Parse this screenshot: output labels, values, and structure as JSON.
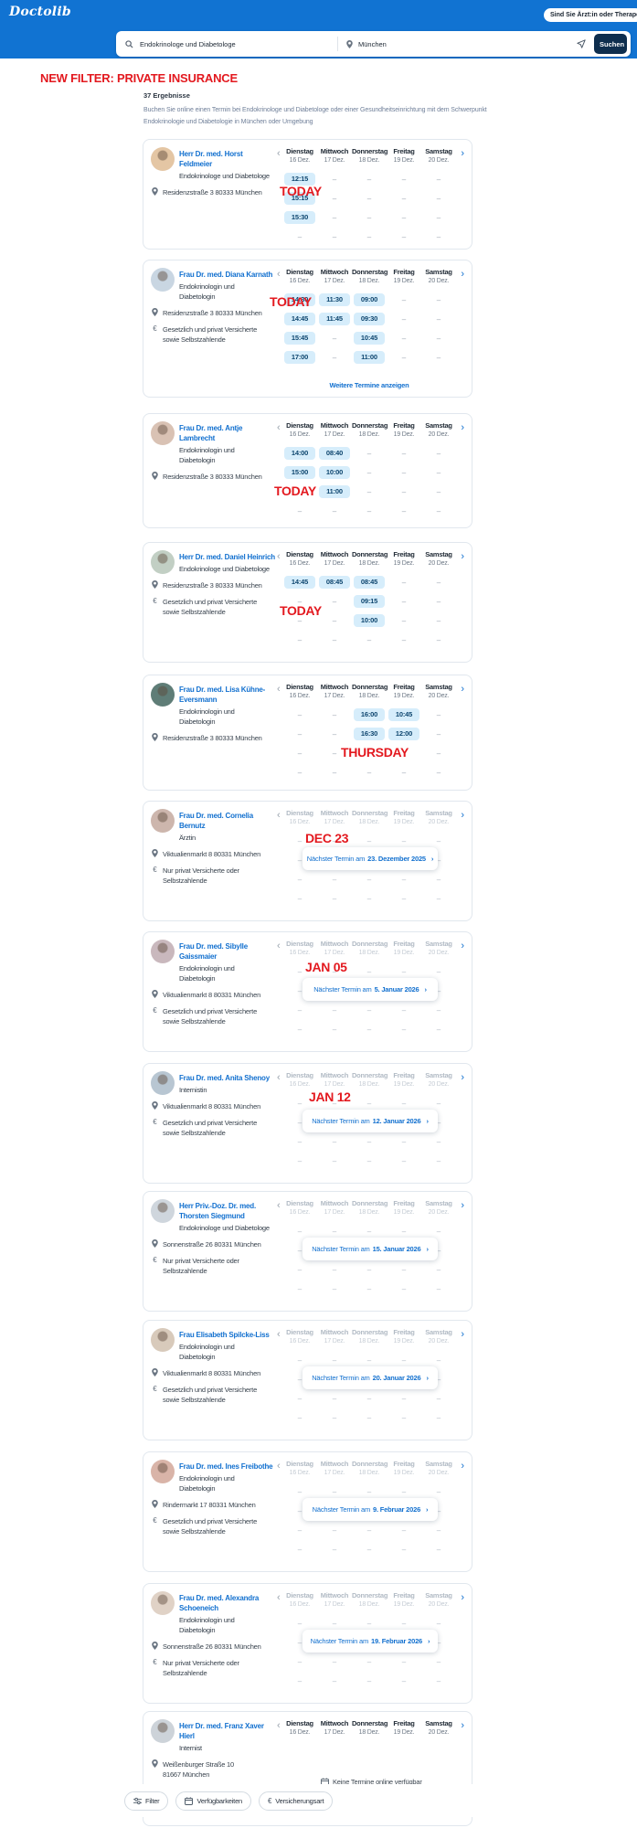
{
  "header": {
    "logo": "Doctolib",
    "pro_button_label": "Sind Sie Ärzt:in oder Therapeut:in",
    "search": {
      "query": "Endokrinologe und Diabetologe",
      "location": "München",
      "submit_label": "Suchen"
    }
  },
  "annotations": {
    "filter_banner": "NEW FILTER: PRIVATE INSURANCE"
  },
  "results": {
    "count_label": "37 Ergebnisse",
    "description": "Buchen Sie online einen Termin bei Endokrinologe und Diabetologe oder einer Gesundheitseinrichtung mit dem Schwerpunkt\nEndokrinologie und Diabetologie in München oder Umgebung"
  },
  "calendar": {
    "days": [
      {
        "label": "Dienstag",
        "date": "16 Dez."
      },
      {
        "label": "Mittwoch",
        "date": "17 Dez."
      },
      {
        "label": "Donnerstag",
        "date": "18 Dez."
      },
      {
        "label": "Freitag",
        "date": "19 Dez."
      },
      {
        "label": "Samstag",
        "date": "20 Dez."
      }
    ],
    "more_link_label": "Weitere Termine anzeigen",
    "next_prefix": "Nächster Termin am",
    "no_online_label": "Keine Termine online verfügbar"
  },
  "doctors": [
    {
      "name": "Herr Dr. med. Horst Feldmeier",
      "specialty": "Endokrinologe und Diabetologe",
      "address": "Residenzstraße 3 80333 München",
      "insurance": null,
      "annotation": "TODAY",
      "mode": "slots",
      "slots": [
        [
          "12:15",
          "–",
          "–",
          "–",
          "–"
        ],
        [
          "15:15",
          "–",
          "–",
          "–",
          "–"
        ],
        [
          "15:30",
          "–",
          "–",
          "–",
          "–"
        ],
        [
          "–",
          "–",
          "–",
          "–",
          "–"
        ]
      ]
    },
    {
      "name": "Frau Dr. med. Diana Karnath",
      "specialty": "Endokrinologin und\nDiabetologin",
      "address": "Residenzstraße 3 80333 München",
      "insurance": "Gesetzlich und privat Versicherte\nsowie Selbstzahlende",
      "annotation": "TODAY",
      "mode": "slots",
      "more_link": true,
      "slots": [
        [
          "14:30",
          "11:30",
          "09:00",
          "–",
          "–"
        ],
        [
          "14:45",
          "11:45",
          "09:30",
          "–",
          "–"
        ],
        [
          "15:45",
          "–",
          "10:45",
          "–",
          "–"
        ],
        [
          "17:00",
          "–",
          "11:00",
          "–",
          "–"
        ]
      ]
    },
    {
      "name": "Frau Dr. med. Antje Lambrecht",
      "specialty": "Endokrinologin und\nDiabetologin",
      "address": "Residenzstraße 3 80333 München",
      "insurance": null,
      "annotation": "TODAY",
      "mode": "slots",
      "slots": [
        [
          "14:00",
          "08:40",
          "–",
          "–",
          "–"
        ],
        [
          "15:00",
          "10:00",
          "–",
          "–",
          "–"
        ],
        [
          "",
          "11:00",
          "–",
          "–",
          "–"
        ],
        [
          "–",
          "–",
          "–",
          "–",
          "–"
        ]
      ]
    },
    {
      "name": "Herr Dr. med. Daniel Heinrich",
      "specialty": "Endokrinologe und Diabetologe",
      "address": "Residenzstraße 3 80333 München",
      "insurance": "Gesetzlich und privat Versicherte\nsowie Selbstzahlende",
      "annotation": "TODAY",
      "mode": "slots",
      "slots": [
        [
          "14:45",
          "08:45",
          "08:45",
          "–",
          "–"
        ],
        [
          "–",
          "–",
          "09:15",
          "–",
          "–"
        ],
        [
          "–",
          "–",
          "10:00",
          "–",
          "–"
        ],
        [
          "–",
          "–",
          "–",
          "–",
          "–"
        ]
      ]
    },
    {
      "name": "Frau Dr. med. Lisa Kühne-\nEversmann",
      "specialty": "Endokrinologin und\nDiabetologin",
      "address": "Residenzstraße 3 80333 München",
      "insurance": null,
      "annotation": "THURSDAY",
      "mode": "slots",
      "slots": [
        [
          "–",
          "–",
          "16:00",
          "10:45",
          "–"
        ],
        [
          "–",
          "–",
          "16:30",
          "12:00",
          "–"
        ],
        [
          "–",
          "–",
          "",
          "",
          "–"
        ],
        [
          "–",
          "–",
          "–",
          "–",
          "–"
        ]
      ]
    },
    {
      "name": "Frau Dr. med. Cornelia Bernutz",
      "specialty": "Ärztin",
      "address": "Viktualienmarkt 8 80331 München",
      "insurance": "Nur privat Versicherte oder\nSelbstzahlende",
      "annotation": "DEC 23",
      "mode": "next",
      "next_date": "23. Dezember 2025"
    },
    {
      "name": "Frau Dr. med. Sibylle\nGaissmaier",
      "specialty": "Endokrinologin und\nDiabetologin",
      "address": "Viktualienmarkt 8 80331 München",
      "insurance": "Gesetzlich und privat Versicherte\nsowie Selbstzahlende",
      "annotation": "JAN 05",
      "mode": "next",
      "next_date": "5. Januar 2026"
    },
    {
      "name": "Frau Dr. med. Anita Shenoy",
      "specialty": "Internistin",
      "address": "Viktualienmarkt 8 80331 München",
      "insurance": "Gesetzlich und privat Versicherte\nsowie Selbstzahlende",
      "annotation": "JAN 12",
      "mode": "next",
      "next_date": "12. Januar 2026"
    },
    {
      "name": "Herr Priv.-Doz. Dr. med.\nThorsten Siegmund",
      "specialty": "Endokrinologe und Diabetologe",
      "address": "Sonnenstraße 26 80331 München",
      "insurance": "Nur privat Versicherte oder\nSelbstzahlende",
      "annotation": null,
      "mode": "next",
      "next_date": "15. Januar 2026"
    },
    {
      "name": "Frau Elisabeth Spilcke-Liss",
      "specialty": "Endokrinologin und\nDiabetologin",
      "address": "Viktualienmarkt 8 80331 München",
      "insurance": "Gesetzlich und privat Versicherte\nsowie Selbstzahlende",
      "annotation": null,
      "mode": "next",
      "next_date": "20. Januar 2026"
    },
    {
      "name": "Frau Dr. med. Ines Freibothe",
      "specialty": "Endokrinologin und\nDiabetologin",
      "address": "Rindermarkt 17 80331 München",
      "insurance": "Gesetzlich und privat Versicherte\nsowie Selbstzahlende",
      "annotation": null,
      "mode": "next",
      "next_date": "9. Februar 2026"
    },
    {
      "name": "Frau Dr. med. Alexandra\nSchoeneich",
      "specialty": "Endokrinologin und\nDiabetologin",
      "address": "Sonnenstraße 26 80331 München",
      "insurance": "Nur privat Versicherte oder\nSelbstzahlende",
      "annotation": null,
      "mode": "next",
      "next_date": "19. Februar 2026"
    },
    {
      "name": "Herr Dr. med. Franz Xaver Hierl",
      "specialty": "Internist",
      "address": "Weißenburger Straße 10\n81667 München",
      "insurance": "Gesetzlich und privat Versicherte\nsowie Selbstzahlende",
      "annotation": null,
      "mode": "none"
    }
  ],
  "footer": {
    "filters": [
      {
        "label": "Filter"
      },
      {
        "label": "Verfügbarkeiten"
      },
      {
        "label": "Versicherungsart"
      }
    ]
  }
}
